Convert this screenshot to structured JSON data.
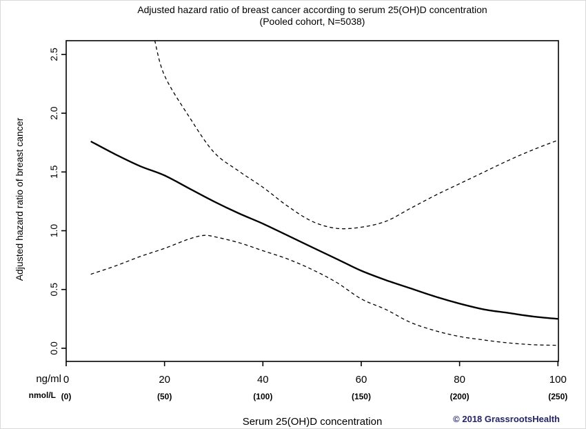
{
  "title": {
    "line1": "Adjusted hazard ratio of breast cancer according to serum 25(OH)D concentration",
    "line2": "(Pooled cohort, N=5038)"
  },
  "axes": {
    "y_label": "Adjusted hazard ratio of breast cancer",
    "y_tick_labels": [
      "0.0",
      "0.5",
      "1.0",
      "1.5",
      "2.0",
      "2.5"
    ],
    "x_label": "Serum 25(OH)D concentration",
    "x_unit_primary": "ng/ml",
    "x_unit_secondary": "nmol/L",
    "x_tick_labels_ngml": [
      "0",
      "20",
      "40",
      "60",
      "80",
      "100"
    ],
    "x_tick_labels_nmoll": [
      "(0)",
      "(50)",
      "(100)",
      "(150)",
      "(200)",
      "(250)"
    ]
  },
  "footer": {
    "copyright": "© 2018 GrassrootsHealth",
    "copyright_color": "#232366"
  },
  "colors": {
    "line": "#000000",
    "background": "#ffffff"
  },
  "chart_data": {
    "type": "line",
    "title": "Adjusted hazard ratio of breast cancer according to serum 25(OH)D concentration",
    "subtitle": "(Pooled cohort, N=5038)",
    "xlabel": "Serum 25(OH)D concentration",
    "ylabel": "Adjusted hazard ratio of breast cancer",
    "x_units": [
      "ng/ml",
      "nmol/L"
    ],
    "x_ticks": [
      0,
      20,
      40,
      60,
      80,
      100
    ],
    "x_ticks_nmoll": [
      0,
      50,
      100,
      150,
      200,
      250
    ],
    "y_ticks": [
      0,
      0.5,
      1.0,
      1.5,
      2.0,
      2.5
    ],
    "xlim": [
      0,
      100.1
    ],
    "ylim": [
      -0.112,
      2.617
    ],
    "grid": false,
    "legend": "none",
    "series": [
      {
        "name": "adjusted hazard ratio (point estimate)",
        "line_style": "solid",
        "x": [
          5,
          10,
          15,
          20,
          25,
          30,
          35,
          40,
          45,
          50,
          55,
          60,
          65,
          70,
          75,
          80,
          85,
          90,
          95,
          100
        ],
        "y": [
          1.76,
          1.65,
          1.55,
          1.47,
          1.36,
          1.25,
          1.15,
          1.06,
          0.96,
          0.86,
          0.76,
          0.66,
          0.58,
          0.51,
          0.44,
          0.38,
          0.33,
          0.3,
          0.27,
          0.25
        ]
      },
      {
        "name": "upper confidence band",
        "line_style": "dashed",
        "x": [
          18,
          20,
          25,
          30,
          35,
          40,
          45,
          50,
          55,
          60,
          65,
          70,
          75,
          80,
          85,
          90,
          95,
          100
        ],
        "y": [
          2.62,
          2.32,
          1.97,
          1.67,
          1.51,
          1.37,
          1.21,
          1.08,
          1.02,
          1.03,
          1.08,
          1.19,
          1.3,
          1.4,
          1.5,
          1.6,
          1.69,
          1.77
        ]
      },
      {
        "name": "lower confidence band",
        "line_style": "dashed",
        "x": [
          5,
          10,
          15,
          20,
          25,
          28,
          30,
          35,
          40,
          45,
          50,
          55,
          60,
          65,
          70,
          75,
          80,
          85,
          90,
          95,
          100
        ],
        "y": [
          0.63,
          0.7,
          0.78,
          0.85,
          0.93,
          0.96,
          0.95,
          0.9,
          0.83,
          0.76,
          0.67,
          0.56,
          0.42,
          0.33,
          0.22,
          0.15,
          0.1,
          0.07,
          0.045,
          0.03,
          0.025
        ]
      }
    ]
  }
}
